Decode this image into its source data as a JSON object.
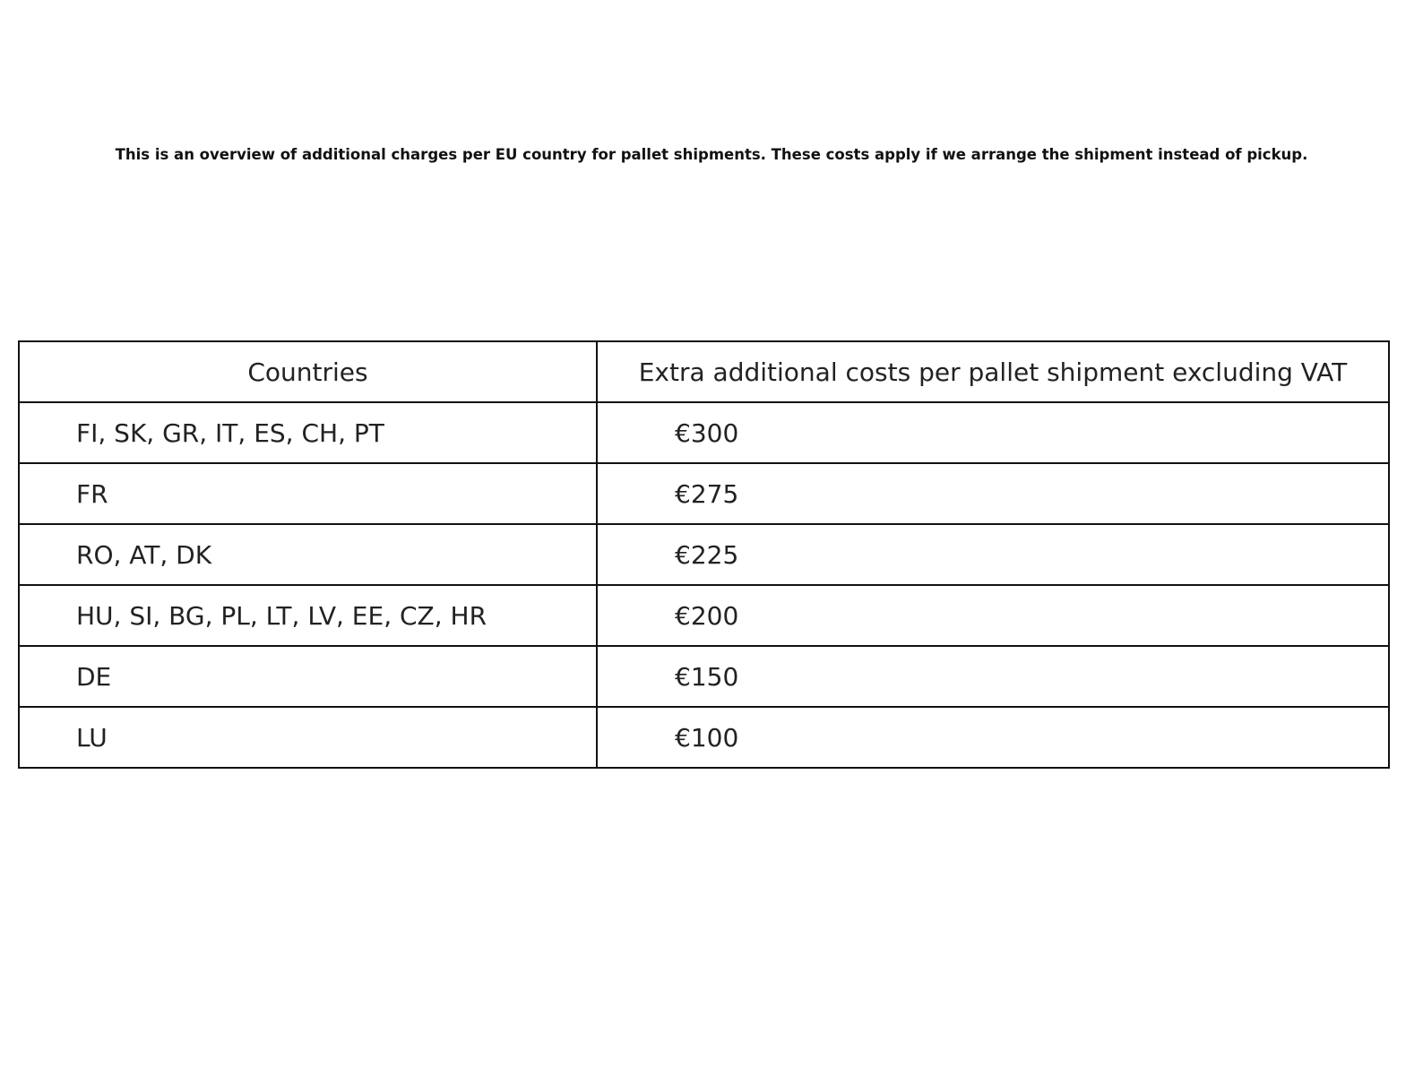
{
  "chart_data": {
    "type": "table",
    "title": "This is an overview of additional charges per EU country for pallet shipments. These costs apply if we arrange the shipment instead of pickup.",
    "columns": [
      "Countries",
      "Extra additional costs per pallet shipment excluding VAT"
    ],
    "rows": [
      [
        "FI, SK, GR, IT, ES, CH, PT",
        "€300"
      ],
      [
        "FR",
        "€275"
      ],
      [
        "RO, AT, DK",
        "€225"
      ],
      [
        "HU, SI, BG, PL, LT, LV, EE, CZ, HR",
        "€200"
      ],
      [
        "DE",
        "€150"
      ],
      [
        "LU",
        "€100"
      ]
    ]
  }
}
